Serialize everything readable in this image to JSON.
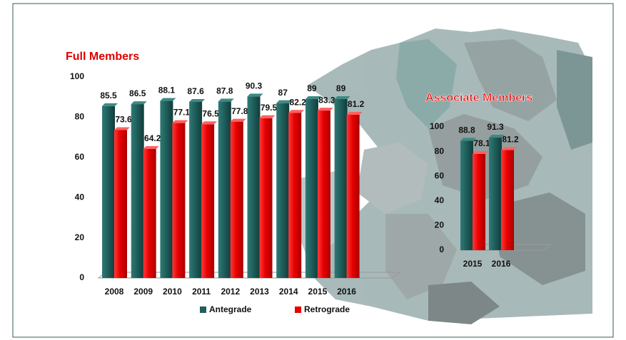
{
  "chart_data": [
    {
      "type": "bar",
      "title": "Full Members",
      "categories": [
        "2008",
        "2009",
        "2010",
        "2011",
        "2012",
        "2013",
        "2014",
        "2015",
        "2016"
      ],
      "series": [
        {
          "name": "Antegrade",
          "color": "#1f5f5c",
          "values": [
            85.5,
            86.5,
            88.1,
            87.6,
            87.8,
            90.3,
            87,
            89,
            89
          ]
        },
        {
          "name": "Retrograde",
          "color": "#e80000",
          "values": [
            73.6,
            64.2,
            77.1,
            76.5,
            77.8,
            79.5,
            82.2,
            83.3,
            81.2
          ]
        }
      ],
      "ylim": [
        0,
        100
      ],
      "yticks": [
        0,
        20,
        40,
        60,
        80,
        100
      ]
    },
    {
      "type": "bar",
      "title": "Associate Members",
      "categories": [
        "2015",
        "2016"
      ],
      "series": [
        {
          "color": "#1f5f5c",
          "values": [
            88.8,
            91.3
          ]
        },
        {
          "color": "#e80000",
          "values": [
            78.1,
            81.2
          ]
        }
      ],
      "ylim": [
        0,
        100
      ],
      "yticks": [
        0,
        20,
        40,
        60,
        80,
        100
      ]
    }
  ]
}
